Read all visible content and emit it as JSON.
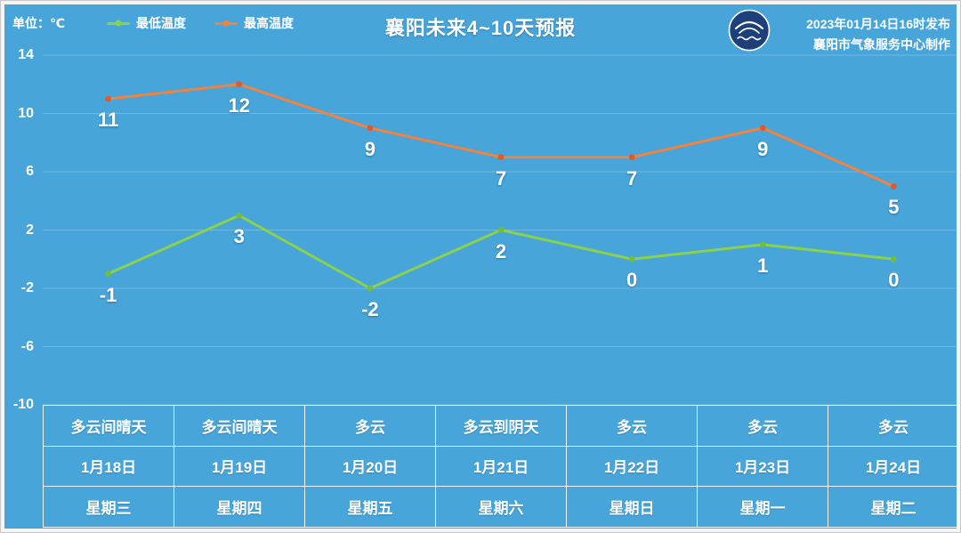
{
  "header": {
    "unit_label": "单位：℃",
    "title": "襄阳未来4~10天预报",
    "release_line1": "2023年01月14日16时发布",
    "release_line2": "襄阳市气象服务中心制作"
  },
  "legend": [
    {
      "label": "最低温度",
      "color": "#8bd24b"
    },
    {
      "label": "最高温度",
      "color": "#f1823f"
    }
  ],
  "chart_data": {
    "type": "line",
    "title": "襄阳未来4~10天预报",
    "categories": [
      "1月18日",
      "1月19日",
      "1月20日",
      "1月21日",
      "1月22日",
      "1月23日",
      "1月24日"
    ],
    "series": [
      {
        "key": "min-temp",
        "name": "最低温度",
        "color": "#8bd24b",
        "marker_color": "#74bd3c",
        "values": [
          -1,
          3,
          -2,
          2,
          0,
          1,
          0
        ]
      },
      {
        "key": "max-temp",
        "name": "最高温度",
        "color": "#f1823f",
        "marker_color": "#df5a2d",
        "values": [
          11,
          12,
          9,
          7,
          7,
          9,
          5
        ]
      }
    ],
    "ylabel": "单位：℃",
    "ylim": [
      -10,
      14
    ],
    "yticks": [
      14,
      10,
      6,
      2,
      -2,
      -6,
      -10
    ],
    "grid": true,
    "legend_position": "top-left"
  },
  "table": {
    "row_keys": [
      "condition",
      "date",
      "weekday"
    ],
    "days": [
      {
        "condition": "多云间晴天",
        "date": "1月18日",
        "weekday": "星期三"
      },
      {
        "condition": "多云间晴天",
        "date": "1月19日",
        "weekday": "星期四"
      },
      {
        "condition": "多云",
        "date": "1月20日",
        "weekday": "星期五"
      },
      {
        "condition": "多云到阴天",
        "date": "1月21日",
        "weekday": "星期六"
      },
      {
        "condition": "多云",
        "date": "1月22日",
        "weekday": "星期日"
      },
      {
        "condition": "多云",
        "date": "1月23日",
        "weekday": "星期一"
      },
      {
        "condition": "多云",
        "date": "1月24日",
        "weekday": "星期二"
      }
    ]
  },
  "colors": {
    "background": "#47a5da",
    "text": "#ffffff",
    "grid": "rgba(255,255,255,0.22)",
    "table_border": "rgba(255,255,255,0.9)",
    "logo_bg": "#1d3f7a"
  }
}
